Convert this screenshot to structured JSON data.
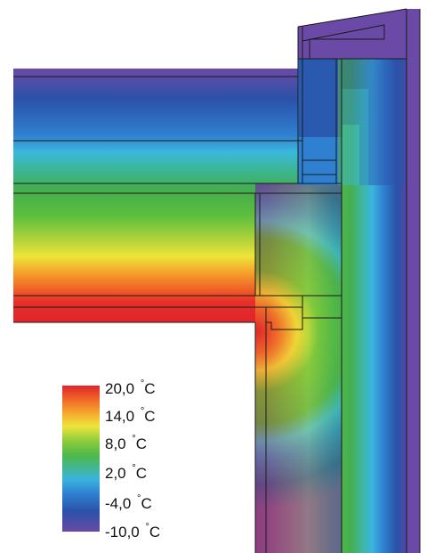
{
  "legend": {
    "labels": [
      {
        "value": "20,0",
        "unit": "C"
      },
      {
        "value": "14,0",
        "unit": "C"
      },
      {
        "value": "8,0",
        "unit": "C"
      },
      {
        "value": "2,0",
        "unit": "C"
      },
      {
        "value": "-4,0",
        "unit": "C"
      },
      {
        "value": "-10,0",
        "unit": "C"
      }
    ],
    "range_celsius": [
      -10,
      20
    ]
  },
  "palette": {
    "cold": "#6a4aa6",
    "blue": "#2a64b6",
    "cyan": "#36b6dc",
    "green": "#4eb84c",
    "yellow": "#e8e23a",
    "orange": "#f5902c",
    "hot": "#e22a2a",
    "line": "#1a1a1a"
  }
}
